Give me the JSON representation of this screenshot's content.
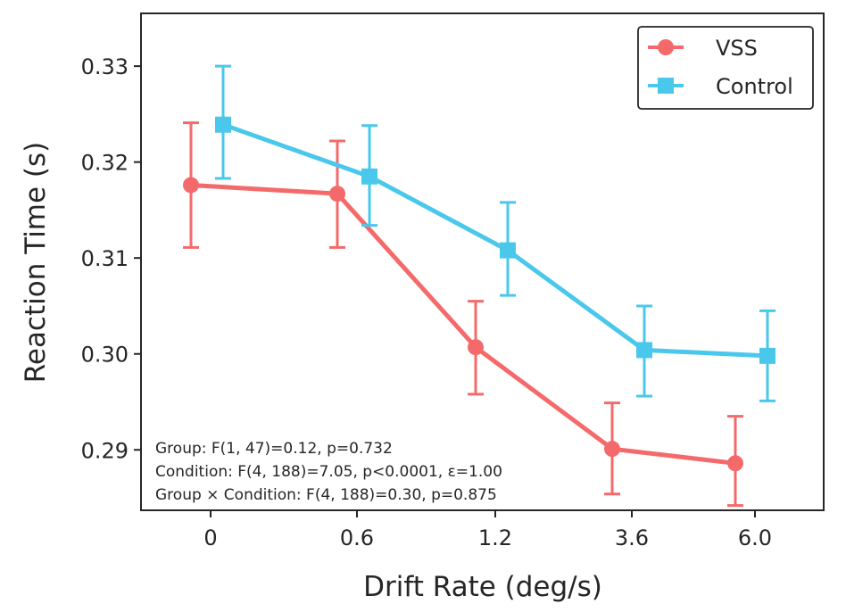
{
  "chart_data": {
    "type": "line",
    "xlabel": "Drift Rate (deg/s)",
    "ylabel": "Reaction Time (s)",
    "categories": [
      "0",
      "0.6",
      "1.2",
      "3.6",
      "6.0"
    ],
    "ylim": [
      0.2837,
      0.3355
    ],
    "yticks": [
      0.29,
      0.3,
      0.31,
      0.32,
      0.33
    ],
    "ytick_labels": [
      "0.29",
      "0.30",
      "0.31",
      "0.32",
      "0.33"
    ],
    "grid": false,
    "legend_position": "top-right",
    "series": [
      {
        "name": "VSS",
        "color": "#f46a6b",
        "marker": "circle",
        "values": [
          0.3176,
          0.3167,
          0.3007,
          0.2901,
          0.2886
        ],
        "error_low": [
          0.3111,
          0.3111,
          0.2958,
          0.2854,
          0.2842
        ],
        "error_high": [
          0.3241,
          0.3222,
          0.3055,
          0.2949,
          0.2935
        ]
      },
      {
        "name": "Control",
        "color": "#4ac8ec",
        "marker": "square",
        "values": [
          0.3239,
          0.3185,
          0.3108,
          0.3004,
          0.2998
        ],
        "error_low": [
          0.3183,
          0.3134,
          0.3061,
          0.2956,
          0.2951
        ],
        "error_high": [
          0.33,
          0.3238,
          0.3158,
          0.305,
          0.3045
        ]
      }
    ],
    "annotations": [
      "Group: F(1, 47)=0.12, p=0.732",
      "Condition: F(4, 188)=7.05, p<0.0001, ε=1.00",
      "Group × Condition: F(4, 188)=0.30, p=0.875"
    ]
  }
}
